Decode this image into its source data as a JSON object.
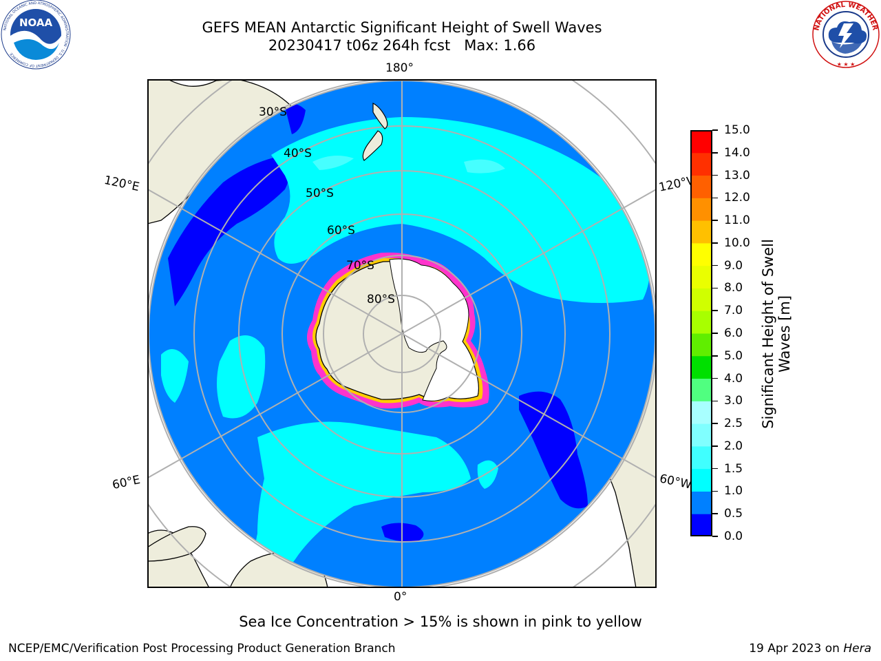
{
  "header": {
    "title_line_1": "GEFS MEAN Antarctic Significant Height of Swell Waves",
    "title_line_2": "20230417 t06z 264h fcst   Max: 1.66"
  },
  "logos": {
    "left": "NOAA",
    "left_ring_text": "NATIONAL OCEANIC AND ATMOSPHERIC ADMINISTRATION · U.S. DEPARTMENT OF COMMERCE",
    "right_ring_text": "NATIONAL WEATHER SERVICE"
  },
  "map": {
    "projection": "south-polar-stereographic",
    "longitude_labels": {
      "top": "180°",
      "bottom": "0°",
      "upper_left": "120°E",
      "upper_right": "120°W",
      "lower_left": "60°E",
      "lower_right": "60°W"
    },
    "latitude_labels": [
      "30°S",
      "40°S",
      "50°S",
      "60°S",
      "70°S",
      "80°S"
    ],
    "colors": {
      "land": "#eeeddc",
      "ocean_low": "#0000ff",
      "ocean_mid": "#0080ff",
      "ocean_high": "#00ffff",
      "ocean_higher": "#80ffff",
      "ice_edge": "#ff33cc",
      "ice_yellow": "#ffcc00",
      "gridline": "#b0b0b0",
      "coast": "#000000"
    }
  },
  "colorbar": {
    "title": "Significant Height of Swell\nWaves [m]",
    "ticks": [
      "0.0",
      "0.5",
      "1.0",
      "1.5",
      "2.0",
      "2.5",
      "3.0",
      "4.0",
      "5.0",
      "6.0",
      "7.0",
      "8.0",
      "9.0",
      "10.0",
      "11.0",
      "12.0",
      "13.0",
      "14.0",
      "15.0"
    ],
    "colors": [
      "#0000ff",
      "#0080ff",
      "#00ffff",
      "#40ffff",
      "#80ffff",
      "#a8ffff",
      "#50ff80",
      "#00e000",
      "#60ee00",
      "#a8ff00",
      "#d0ff00",
      "#eaff00",
      "#ffff00",
      "#ffc000",
      "#ff9000",
      "#ff6000",
      "#ff3000",
      "#ff0000"
    ]
  },
  "footnote": "Sea Ice Concentration > 15% is shown in pink to yellow",
  "footer": {
    "left": "NCEP/EMC/Verification Post Processing Product Generation Branch",
    "right_prefix": "19 Apr 2023 on ",
    "right_host": "Hera"
  }
}
